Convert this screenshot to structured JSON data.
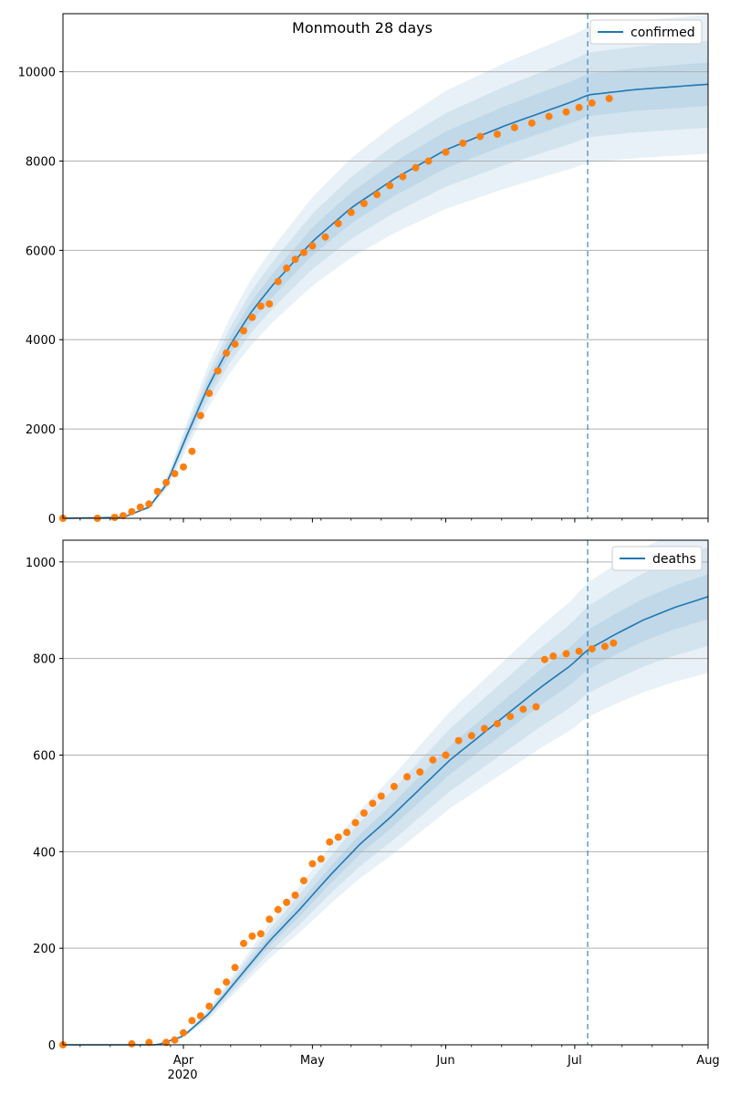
{
  "figure": {
    "title": "Monmouth 28 days",
    "background": "#ffffff"
  },
  "colors": {
    "model_line": "#1f77b4",
    "band": "#1f77b4",
    "observed": "#ff7f0e",
    "forecast_divider": "#1f77b4",
    "grid": "#b0b0b0"
  },
  "chart_data": [
    {
      "type": "line",
      "legend": [
        "confirmed"
      ],
      "legend_position": "top-right",
      "grid": "horizontal",
      "xlim": [
        "2020-03-04",
        "2020-08-01"
      ],
      "ylim": [
        0,
        11300
      ],
      "yticks": [
        0,
        2000,
        4000,
        6000,
        8000,
        10000
      ],
      "forecast_start": "2020-07-04",
      "series": [
        {
          "name": "confirmed",
          "kind": "model",
          "x": [
            "2020-03-04",
            "2020-03-18",
            "2020-03-24",
            "2020-03-28",
            "2020-04-02",
            "2020-04-07",
            "2020-04-12",
            "2020-04-17",
            "2020-04-22",
            "2020-05-01",
            "2020-05-10",
            "2020-05-20",
            "2020-06-01",
            "2020-06-15",
            "2020-07-01",
            "2020-07-04",
            "2020-07-15",
            "2020-08-01"
          ],
          "values": [
            0,
            20,
            250,
            750,
            1900,
            3000,
            3900,
            4650,
            5250,
            6200,
            6950,
            7600,
            8250,
            8800,
            9350,
            9480,
            9600,
            9720
          ]
        },
        {
          "name": "confirmed",
          "kind": "observed",
          "x": [
            "2020-03-04",
            "2020-03-12",
            "2020-03-16",
            "2020-03-18",
            "2020-03-20",
            "2020-03-22",
            "2020-03-24",
            "2020-03-26",
            "2020-03-28",
            "2020-03-30",
            "2020-04-01",
            "2020-04-03",
            "2020-04-05",
            "2020-04-07",
            "2020-04-09",
            "2020-04-11",
            "2020-04-13",
            "2020-04-15",
            "2020-04-17",
            "2020-04-19",
            "2020-04-21",
            "2020-04-23",
            "2020-04-25",
            "2020-04-27",
            "2020-04-29",
            "2020-05-01",
            "2020-05-04",
            "2020-05-07",
            "2020-05-10",
            "2020-05-13",
            "2020-05-16",
            "2020-05-19",
            "2020-05-22",
            "2020-05-25",
            "2020-05-28",
            "2020-06-01",
            "2020-06-05",
            "2020-06-09",
            "2020-06-13",
            "2020-06-17",
            "2020-06-21",
            "2020-06-25",
            "2020-06-29",
            "2020-07-02",
            "2020-07-05",
            "2020-07-09"
          ],
          "values": [
            0,
            0,
            20,
            60,
            150,
            250,
            320,
            600,
            800,
            1000,
            1150,
            1500,
            2300,
            2800,
            3300,
            3700,
            3900,
            4200,
            4500,
            4750,
            4800,
            5300,
            5600,
            5800,
            5950,
            6100,
            6300,
            6600,
            6850,
            7050,
            7250,
            7450,
            7650,
            7850,
            8000,
            8200,
            8400,
            8550,
            8600,
            8750,
            8850,
            9000,
            9100,
            9200,
            9300,
            9400
          ]
        }
      ],
      "band_half_widths_pct": [
        0.16,
        0.1,
        0.05
      ]
    },
    {
      "type": "line",
      "legend": [
        "deaths"
      ],
      "legend_position": "top-right",
      "grid": "horizontal",
      "xlim": [
        "2020-03-04",
        "2020-08-01"
      ],
      "ylim": [
        0,
        1045
      ],
      "yticks": [
        0,
        200,
        400,
        600,
        800,
        1000
      ],
      "forecast_start": "2020-07-04",
      "series": [
        {
          "name": "deaths",
          "kind": "model",
          "x": [
            "2020-03-04",
            "2020-03-26",
            "2020-04-01",
            "2020-04-07",
            "2020-04-14",
            "2020-04-21",
            "2020-04-28",
            "2020-05-05",
            "2020-05-12",
            "2020-05-19",
            "2020-05-26",
            "2020-06-02",
            "2020-06-09",
            "2020-06-16",
            "2020-06-23",
            "2020-06-30",
            "2020-07-04",
            "2020-07-10",
            "2020-07-17",
            "2020-07-24",
            "2020-08-01"
          ],
          "values": [
            0,
            0,
            18,
            65,
            140,
            215,
            280,
            350,
            415,
            470,
            530,
            590,
            640,
            690,
            740,
            785,
            818,
            848,
            880,
            905,
            928
          ]
        },
        {
          "name": "deaths",
          "kind": "observed",
          "x": [
            "2020-03-04",
            "2020-03-20",
            "2020-03-24",
            "2020-03-28",
            "2020-03-30",
            "2020-04-01",
            "2020-04-03",
            "2020-04-05",
            "2020-04-07",
            "2020-04-09",
            "2020-04-11",
            "2020-04-13",
            "2020-04-15",
            "2020-04-17",
            "2020-04-19",
            "2020-04-21",
            "2020-04-23",
            "2020-04-25",
            "2020-04-27",
            "2020-04-29",
            "2020-05-01",
            "2020-05-03",
            "2020-05-05",
            "2020-05-07",
            "2020-05-09",
            "2020-05-11",
            "2020-05-13",
            "2020-05-15",
            "2020-05-17",
            "2020-05-20",
            "2020-05-23",
            "2020-05-26",
            "2020-05-29",
            "2020-06-01",
            "2020-06-04",
            "2020-06-07",
            "2020-06-10",
            "2020-06-13",
            "2020-06-16",
            "2020-06-19",
            "2020-06-22",
            "2020-06-24",
            "2020-06-26",
            "2020-06-29",
            "2020-07-02",
            "2020-07-05",
            "2020-07-08",
            "2020-07-10"
          ],
          "values": [
            0,
            2,
            5,
            5,
            10,
            25,
            50,
            60,
            80,
            110,
            130,
            160,
            210,
            225,
            230,
            260,
            280,
            295,
            310,
            340,
            375,
            385,
            420,
            430,
            440,
            460,
            480,
            500,
            515,
            535,
            555,
            565,
            590,
            600,
            630,
            640,
            655,
            665,
            680,
            695,
            700,
            798,
            805,
            810,
            815,
            820,
            825,
            832
          ]
        }
      ],
      "band_half_widths_pct": [
        0.17,
        0.11,
        0.05
      ]
    }
  ],
  "x_axis": {
    "tick_labels": [
      {
        "date": "2020-04-01",
        "label": "Apr"
      },
      {
        "date": "2020-05-01",
        "label": "May"
      },
      {
        "date": "2020-06-01",
        "label": "Jun"
      },
      {
        "date": "2020-07-01",
        "label": "Jul"
      },
      {
        "date": "2020-08-01",
        "label": "Aug"
      }
    ],
    "year_label": "2020"
  }
}
